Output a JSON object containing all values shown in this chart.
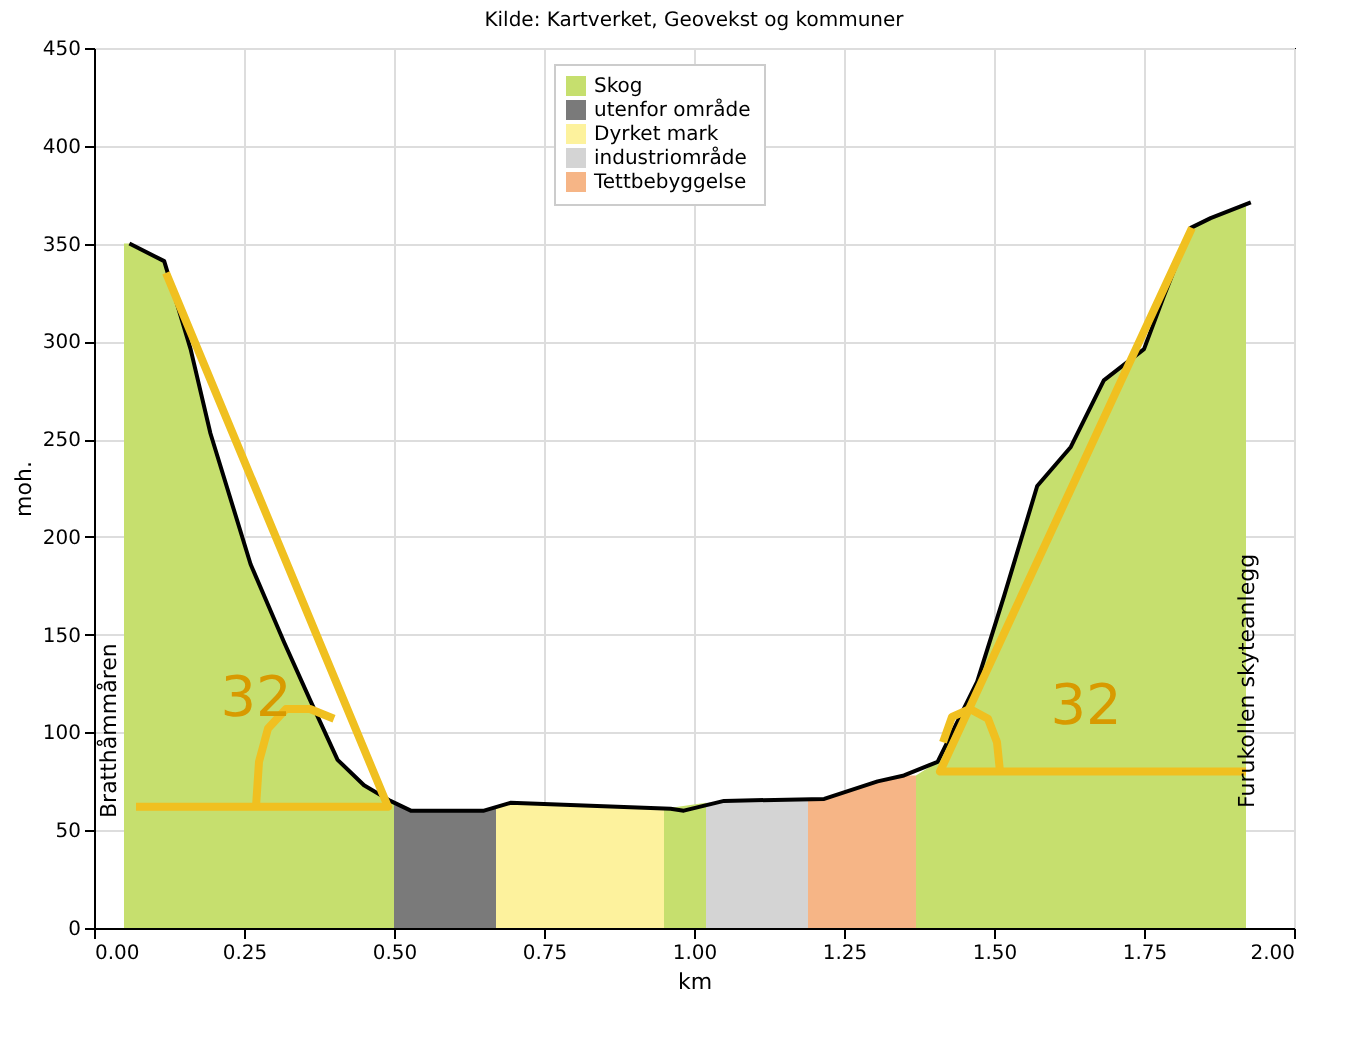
{
  "chart_data": {
    "type": "area",
    "title": "Kilde: Kartverket, Geovekst og kommuner",
    "xlabel": "km",
    "ylabel": "moh.",
    "xlim": [
      0,
      2
    ],
    "xticks": [
      {
        "value": 0,
        "label": "0.00"
      },
      {
        "value": 0.25,
        "label": "0.25"
      },
      {
        "value": 0.5,
        "label": "0.50"
      },
      {
        "value": 0.75,
        "label": "0.75"
      },
      {
        "value": 1,
        "label": "1.00"
      },
      {
        "value": 1.25,
        "label": "1.25"
      },
      {
        "value": 1.5,
        "label": "1.50"
      },
      {
        "value": 1.75,
        "label": "1.75"
      },
      {
        "value": 2,
        "label": "2.00"
      }
    ],
    "ylim": [
      0,
      450
    ],
    "yticks": [
      0,
      50,
      100,
      150,
      200,
      250,
      300,
      350,
      400,
      450
    ],
    "grid": true,
    "legend": "top",
    "series": [
      {
        "name": "Skog",
        "color": "#c6df6e",
        "x": [
          0.05,
          0.059,
          0.117,
          0.161,
          0.194,
          0.261,
          0.317,
          0.361,
          0.406,
          0.45,
          0.5,
          0.7,
          0.95,
          1.02,
          1.2,
          1.37,
          1.406,
          1.472,
          1.517,
          1.572,
          1.628,
          1.683,
          1.75,
          1.783,
          1.828,
          1.861,
          1.92
        ],
        "values": [
          350,
          350,
          341,
          296,
          253,
          186,
          146,
          116,
          86,
          73,
          64,
          null,
          61,
          64,
          null,
          78,
          85,
          126,
          170,
          226,
          246,
          280,
          296,
          323,
          358,
          363,
          371
        ]
      },
      {
        "name": "utenfor område",
        "color": "#7a7a7a",
        "x": [
          0.5,
          0.528,
          0.65,
          0.67
        ],
        "values": [
          64,
          60,
          60,
          62
        ]
      },
      {
        "name": "Dyrket mark",
        "color": "#fdf29d",
        "x": [
          0.67,
          0.694,
          0.95
        ],
        "values": [
          62,
          64,
          61
        ]
      },
      {
        "name": "industriområde",
        "color": "#d4d4d4",
        "x": [
          1.02,
          1.05,
          1.19
        ],
        "values": [
          64,
          65,
          66
        ]
      },
      {
        "name": "Tettbebyggelse",
        "color": "#f6b586",
        "x": [
          1.19,
          1.217,
          1.306,
          1.35,
          1.37
        ],
        "values": [
          66,
          66,
          75,
          78,
          78
        ]
      },
      {
        "color": "#000000",
        "type": "line",
        "x": [
          0.059,
          0.117,
          0.161,
          0.194,
          0.261,
          0.317,
          0.361,
          0.406,
          0.45,
          0.494,
          0.528,
          0.65,
          0.694,
          0.961,
          0.983,
          1.05,
          1.217,
          1.306,
          1.35,
          1.406,
          1.472,
          1.517,
          1.572,
          1.628,
          1.683,
          1.75,
          1.783,
          1.828,
          1.861,
          1.928
        ],
        "values": [
          350,
          341,
          296,
          253,
          186,
          146,
          116,
          86,
          73,
          65,
          60,
          60,
          64,
          61,
          60,
          65,
          66,
          75,
          78,
          85,
          126,
          170,
          226,
          246,
          280,
          296,
          323,
          358,
          363,
          371
        ]
      },
      {
        "color": "#f0c020",
        "type": "line",
        "x": [
          0.12,
          0.49,
          0.07
        ],
        "values": [
          335,
          62,
          62
        ]
      },
      {
        "color": "#f0c020",
        "type": "line",
        "x": [
          0.27,
          0.275,
          0.29,
          0.32,
          0.36,
          0.4
        ],
        "values": [
          62,
          85,
          102,
          112,
          112,
          107
        ]
      },
      {
        "color": "#f0c020",
        "type": "line",
        "x": [
          1.83,
          1.41,
          1.92
        ],
        "values": [
          358,
          80,
          80
        ]
      },
      {
        "color": "#f0c020",
        "type": "line",
        "x": [
          1.51,
          1.505,
          1.49,
          1.46,
          1.43,
          1.415
        ],
        "values": [
          80,
          95,
          107,
          112,
          108,
          95
        ]
      }
    ],
    "annotations": [
      "32",
      "32",
      "Bratthåmmåren",
      "Furukollen skyteanlegg"
    ]
  }
}
